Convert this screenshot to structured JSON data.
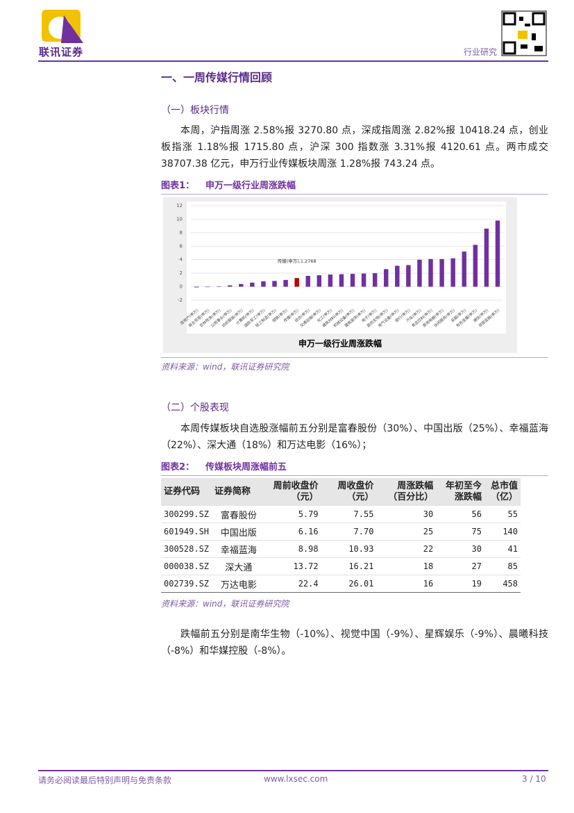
{
  "header": {
    "brand": "联讯证券",
    "section": "行业研究"
  },
  "title": "一、一周传媒行情回顾",
  "subsection1": "（一）板块行情",
  "paragraph1": "本周，沪指周涨 2.58%报 3270.80 点，深成指周涨 2.82%报 10418.24 点，创业板指涨 1.18%报 1715.80 点，沪深 300 指数涨 3.31%报 4120.61 点。两市成交 38707.38 亿元，申万行业传媒板块周涨 1.28%报 743.24 点。",
  "figure1": {
    "label": "图表1：",
    "caption": "申万一级行业周涨跌幅",
    "source": "资料来源：wind，联讯证券研究院"
  },
  "chart_data": {
    "type": "bar",
    "title": "申万一级行业周涨跌幅",
    "categories": [
      "房地产(申万)",
      "商业贸易(申万)",
      "农林牧渔(申万)",
      "公用事业(申万)",
      "纺织服装(申万)",
      "计算机(申万)",
      "国防军工(申万)",
      "轻工制造(申万)",
      "钢铁(申万)",
      "传媒(申万)",
      "综合(申万)",
      "交通运输(申万)",
      "化工(申万)",
      "建筑材料(申万)",
      "机械设备(申万)",
      "建筑装饰(申万)",
      "电子(申万)",
      "医药生物(申万)",
      "电气设备(申万)",
      "银行(申万)",
      "汽车(申万)",
      "食品饮料(申万)",
      "家用电器(申万)",
      "休闲服务(申万)",
      "采掘(申万)",
      "有色金属(申万)",
      "通信(申万)",
      "非银金融(申万)"
    ],
    "values": [
      -0.1,
      -0.05,
      0.02,
      0.2,
      0.4,
      0.6,
      0.8,
      0.85,
      1.0,
      1.2768,
      1.6,
      1.7,
      1.8,
      1.85,
      1.9,
      1.95,
      2.0,
      2.6,
      3.1,
      3.2,
      4.0,
      4.1,
      4.1,
      4.2,
      5.2,
      6.2,
      8.6,
      9.8
    ],
    "colors": [
      "#7030a0",
      "#7030a0",
      "#7030a0",
      "#7030a0",
      "#7030a0",
      "#7030a0",
      "#7030a0",
      "#7030a0",
      "#7030a0",
      "#c00000",
      "#7030a0",
      "#7030a0",
      "#7030a0",
      "#7030a0",
      "#7030a0",
      "#7030a0",
      "#7030a0",
      "#7030a0",
      "#7030a0",
      "#7030a0",
      "#7030a0",
      "#7030a0",
      "#7030a0",
      "#7030a0",
      "#7030a0",
      "#7030a0",
      "#7030a0",
      "#7030a0"
    ],
    "annotation": "传媒(申万),1.2768",
    "ylim": [
      -2,
      12
    ],
    "yticks": [
      -2,
      0,
      2,
      4,
      6,
      8,
      10,
      12
    ],
    "grid": true
  },
  "subsection2": "（二）个股表现",
  "paragraph2": "本周传媒板块自选股涨幅前五分别是富春股份（30%）、中国出版（25%）、幸福蓝海（22%）、深大通（18%）和万达电影（16%）；",
  "figure2": {
    "label": "图表2：",
    "caption": "传媒板块周涨幅前五",
    "source": "资料来源：wind，联讯证券研究院"
  },
  "table": {
    "headers": [
      [
        "证券代码"
      ],
      [
        "证券简称"
      ],
      [
        "周前收盘价",
        "（元）"
      ],
      [
        "周收盘价",
        "（元）"
      ],
      [
        "周涨跌幅",
        "（百分比）"
      ],
      [
        "年初至今",
        "涨跌幅"
      ],
      [
        "总市值",
        "（亿）"
      ]
    ],
    "rows": [
      [
        "300299.SZ",
        "富春股份",
        "5.79",
        "7.55",
        "30",
        "56",
        "55"
      ],
      [
        "601949.SH",
        "中国出版",
        "6.16",
        "7.70",
        "25",
        "75",
        "140"
      ],
      [
        "300528.SZ",
        "幸福蓝海",
        "8.98",
        "10.93",
        "22",
        "30",
        "41"
      ],
      [
        "000038.SZ",
        "深大通",
        "13.72",
        "16.21",
        "18",
        "27",
        "85"
      ],
      [
        "002739.SZ",
        "万达电影",
        "22.4",
        "26.01",
        "16",
        "19",
        "458"
      ]
    ]
  },
  "paragraph3": "跌幅前五分别是南华生物（-10%）、视觉中国（-9%）、星辉娱乐（-9%）、晨曦科技（-8%）和华媒控股（-8%）。",
  "footer": {
    "disclaimer": "请务必阅读最后特别声明与免责条款",
    "url": "www.lxsec.com",
    "page": "3 / 10"
  }
}
